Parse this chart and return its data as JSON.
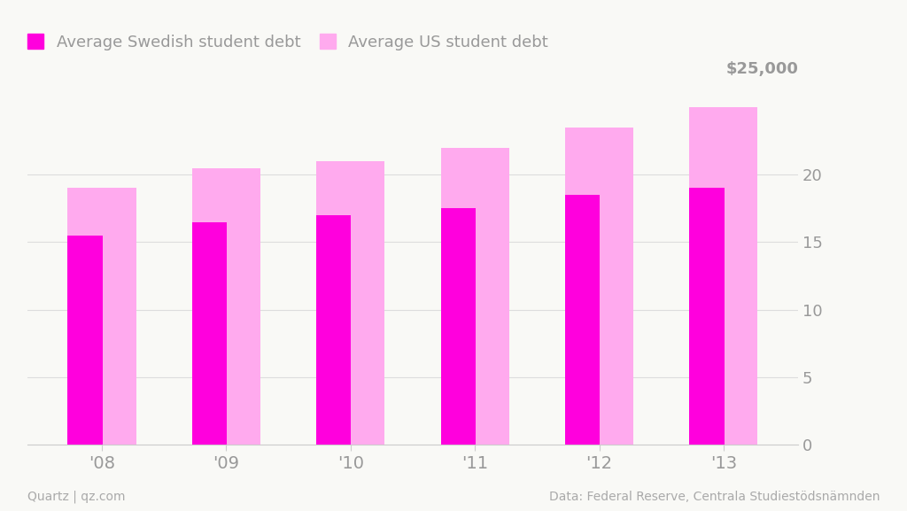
{
  "years": [
    "'08",
    "'09",
    "'10",
    "'11",
    "'12",
    "'13"
  ],
  "swedish_debt": [
    15.5,
    16.5,
    17.0,
    17.5,
    18.5,
    19.0
  ],
  "us_debt": [
    19.0,
    20.5,
    21.0,
    22.0,
    23.5,
    25.0
  ],
  "swedish_color": "#FF00DD",
  "us_color": "#FFAAEE",
  "background_color": "#F9F9F6",
  "title_swedish": "Average Swedish student debt",
  "title_us": "Average US student debt",
  "y_label_top": "$25,000",
  "y_ticks": [
    0,
    5,
    10,
    15,
    20
  ],
  "y_max": 26.5,
  "footer_left": "Quartz | qz.com",
  "footer_right": "Data: Federal Reserve, Centrala Studiestödsnämnden",
  "label_color": "#999999",
  "footer_color": "#AAAAAA",
  "us_bar_width": 0.55,
  "swedish_bar_width": 0.28,
  "grid_color": "#DDDDDD",
  "legend_swedish_color": "#FF00DD",
  "legend_us_color": "#FFAAEE"
}
